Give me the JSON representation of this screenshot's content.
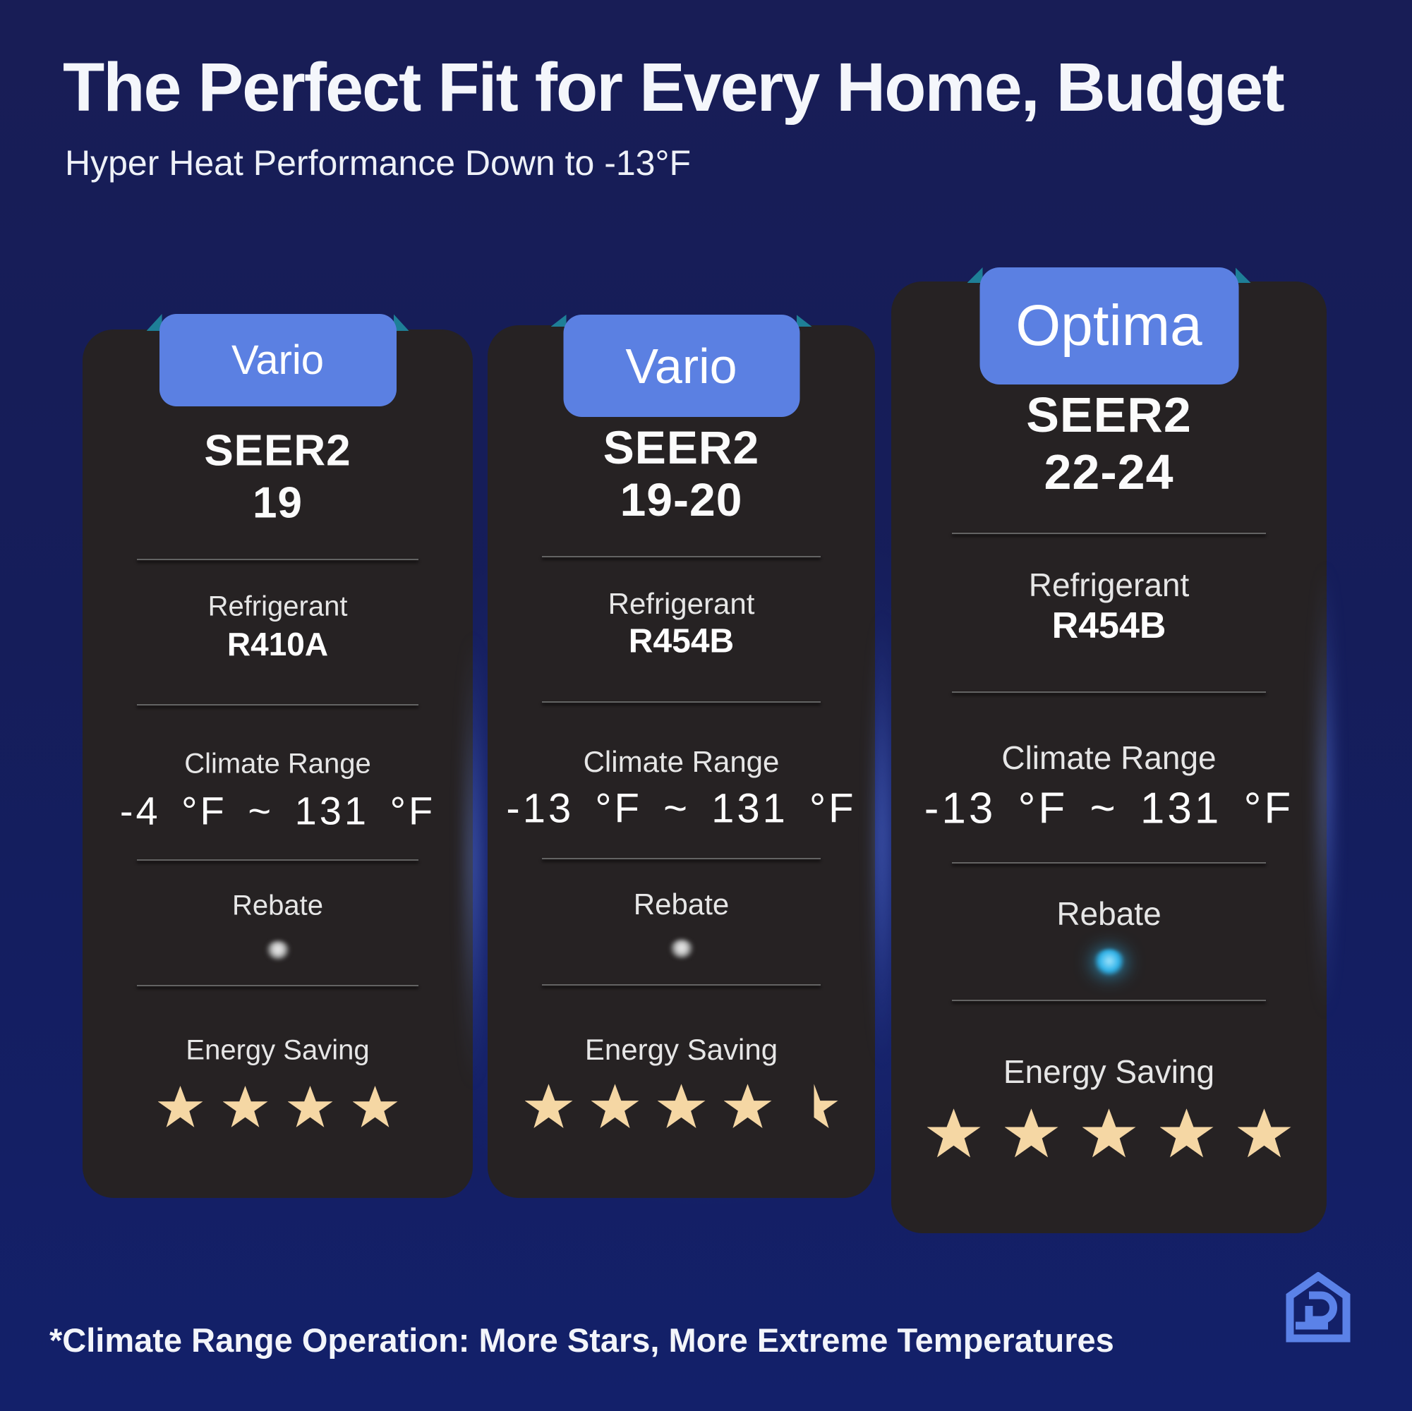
{
  "page": {
    "title": "The Perfect Fit for Every Home, Budget",
    "subtitle": "Hyper Heat Performance Down to -13°F",
    "footnote": "*Climate Range Operation: More Stars, More Extreme Temperatures"
  },
  "colors": {
    "background": "#151d5a",
    "card": "#262223",
    "badge": "#5b80e2",
    "ribbon_fold": "#1e7f97",
    "star": "#f5d7a4",
    "rebate_gray": "#c9c9c9",
    "rebate_blue": "#2fb3ea",
    "logo": "#5b82e8"
  },
  "cards": [
    {
      "badge": "Vario",
      "seer_label": "SEER2",
      "seer_value": "19",
      "refrigerant_label": "Refrigerant",
      "refrigerant_value": "R410A",
      "climate_label": "Climate Range",
      "climate_value": "-4 °F ~ 131 °F",
      "rebate_label": "Rebate",
      "rebate_dot": "gray",
      "energy_label": "Energy Saving",
      "stars": 4
    },
    {
      "badge": "Vario",
      "seer_label": "SEER2",
      "seer_value": "19-20",
      "refrigerant_label": "Refrigerant",
      "refrigerant_value": "R454B",
      "climate_label": "Climate Range",
      "climate_value": "-13 °F ~ 131 °F",
      "rebate_label": "Rebate",
      "rebate_dot": "gray",
      "energy_label": "Energy Saving",
      "stars": 4.5
    },
    {
      "badge": "Optima",
      "seer_label": "SEER2",
      "seer_value": "22-24",
      "refrigerant_label": "Refrigerant",
      "refrigerant_value": "R454B",
      "climate_label": "Climate Range",
      "climate_value": "-13 °F ~ 131 °F",
      "rebate_label": "Rebate",
      "rebate_dot": "blue",
      "energy_label": "Energy Saving",
      "stars": 5
    }
  ],
  "logo_icon": "house-d-logo"
}
